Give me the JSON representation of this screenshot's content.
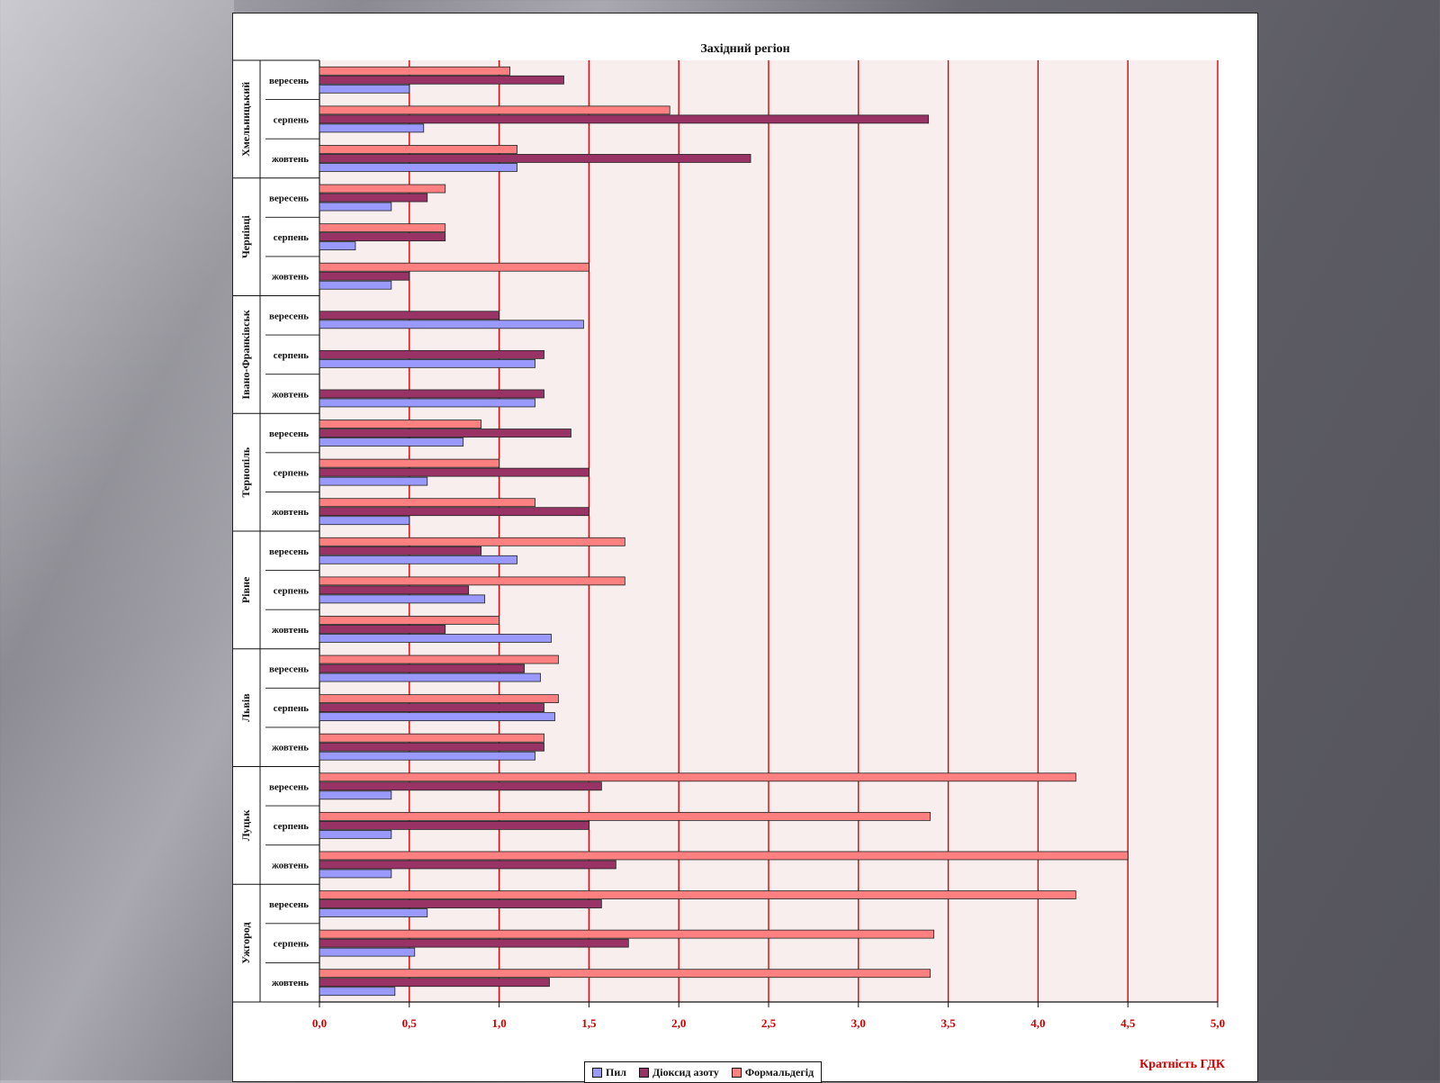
{
  "chart_data": {
    "type": "bar",
    "orientation": "horizontal",
    "title": "Західний регіон",
    "xlabel": "Кратність ГДК",
    "xlim": [
      0,
      5
    ],
    "xticks": [
      "0,0",
      "0,5",
      "1,0",
      "1,5",
      "2,0",
      "2,5",
      "3,0",
      "3,5",
      "4,0",
      "4,5",
      "5,0"
    ],
    "grid": true,
    "legend_position": "bottom",
    "groups": [
      {
        "name": "Хмельницький",
        "categories": [
          "жовтень",
          "серпень",
          "вересень"
        ]
      },
      {
        "name": "Чернівці",
        "categories": [
          "жовтень",
          "серпень",
          "вересень"
        ]
      },
      {
        "name": "Івано-Франківськ",
        "categories": [
          "жовтень",
          "серпень",
          "вересень"
        ]
      },
      {
        "name": "Тернопіль",
        "categories": [
          "жовтень",
          "серпень",
          "вересень"
        ]
      },
      {
        "name": "Рівне",
        "categories": [
          "жовтень",
          "серпень",
          "вересень"
        ]
      },
      {
        "name": "Львів",
        "categories": [
          "жовтень",
          "серпень",
          "вересень"
        ]
      },
      {
        "name": "Луцьк",
        "categories": [
          "жовтень",
          "серпень",
          "вересень"
        ]
      },
      {
        "name": "Ужгород",
        "categories": [
          "жовтень",
          "серпень",
          "вересень"
        ]
      }
    ],
    "series": [
      {
        "name": "Пил",
        "color": "#9999ff",
        "values": [
          1.1,
          0.58,
          0.5,
          0.4,
          0.2,
          0.4,
          1.2,
          1.2,
          1.47,
          0.5,
          0.6,
          0.8,
          1.29,
          0.92,
          1.1,
          1.2,
          1.31,
          1.23,
          0.4,
          0.4,
          0.4,
          0.42,
          0.53,
          0.6
        ]
      },
      {
        "name": "Діоксид азоту",
        "color": "#993366",
        "values": [
          2.4,
          3.39,
          1.36,
          0.5,
          0.7,
          0.6,
          1.25,
          1.25,
          1.0,
          1.5,
          1.5,
          1.4,
          0.7,
          0.83,
          0.9,
          1.25,
          1.25,
          1.14,
          1.65,
          1.5,
          1.57,
          1.28,
          1.72,
          1.57
        ]
      },
      {
        "name": "Формальдегід",
        "color": "#ff8080",
        "values": [
          1.1,
          1.95,
          1.06,
          1.5,
          0.7,
          0.7,
          0,
          0,
          0,
          1.2,
          1.0,
          0.9,
          1.0,
          1.7,
          1.7,
          1.25,
          1.33,
          1.33,
          4.5,
          3.4,
          4.21,
          3.4,
          3.42,
          4.21
        ]
      }
    ]
  },
  "legend": {
    "items": [
      {
        "label": "Пил",
        "color": "#9999ff"
      },
      {
        "label": "Діоксид азоту",
        "color": "#993366"
      },
      {
        "label": "Формальдегід",
        "color": "#ff8080"
      }
    ]
  }
}
